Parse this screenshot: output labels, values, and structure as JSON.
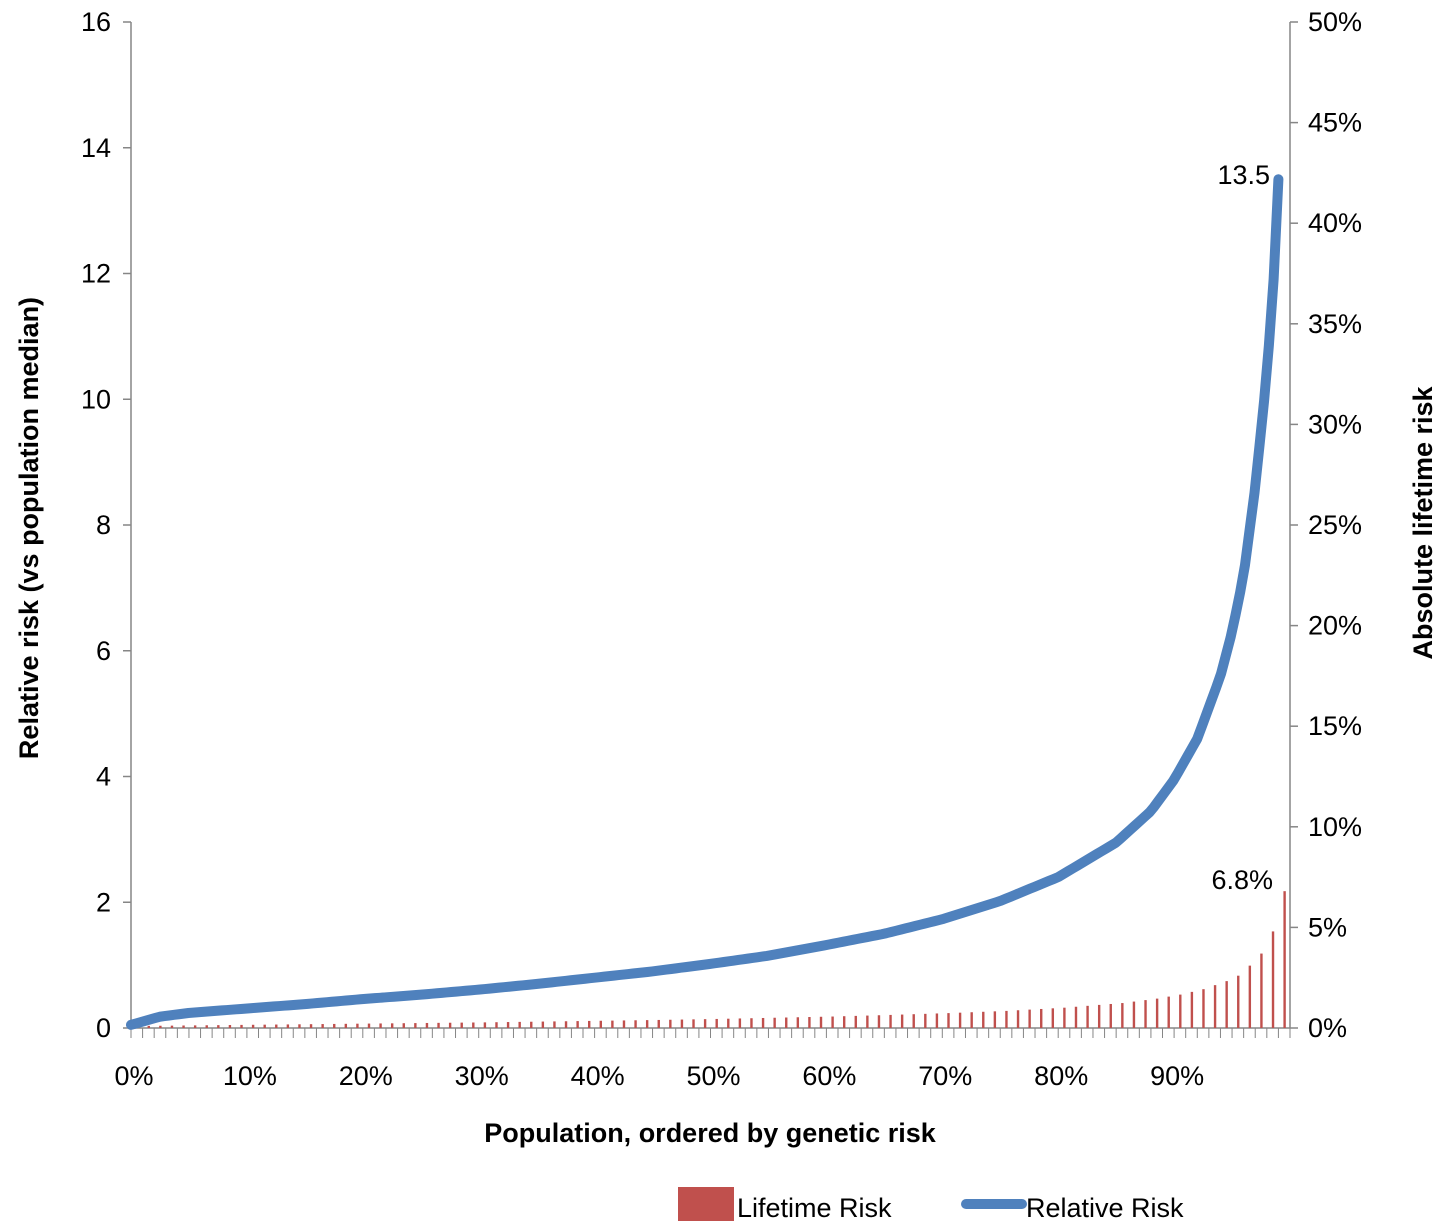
{
  "chart_data": {
    "type": "bar+line",
    "xlabel": "Population, ordered by genetic risk",
    "ylabel_left": "Relative risk (vs population median)",
    "ylabel_right": "Absolute lifetime risk",
    "x_tick_labels": [
      "0%",
      "10%",
      "20%",
      "30%",
      "40%",
      "50%",
      "60%",
      "70%",
      "80%",
      "90%"
    ],
    "y_left_ticks": [
      "0",
      "2",
      "4",
      "6",
      "8",
      "10",
      "12",
      "14",
      "16"
    ],
    "y_right_ticks": [
      "0%",
      "5%",
      "10%",
      "15%",
      "20%",
      "25%",
      "30%",
      "35%",
      "40%",
      "45%",
      "50%"
    ],
    "ylim_left": [
      0,
      16
    ],
    "ylim_right": [
      0,
      0.5
    ],
    "xlim": [
      0,
      100
    ],
    "grid": false,
    "legend_position": "bottom-right",
    "annotations": {
      "line_max": "13.5",
      "bar_max": "6.8%"
    },
    "series": [
      {
        "name": "Lifetime Risk",
        "kind": "bar",
        "axis": "right",
        "color": "#C0504D",
        "x": [
          0,
          5,
          10,
          15,
          20,
          25,
          30,
          35,
          40,
          45,
          50,
          55,
          60,
          65,
          70,
          75,
          80,
          85,
          88,
          90,
          92,
          94,
          95,
          96,
          97,
          98,
          99
        ],
        "values": [
          0.001,
          0.0013,
          0.0016,
          0.0019,
          0.0022,
          0.0025,
          0.0028,
          0.0032,
          0.0036,
          0.004,
          0.0045,
          0.0051,
          0.0057,
          0.0065,
          0.0074,
          0.0085,
          0.0101,
          0.0124,
          0.0146,
          0.0166,
          0.0193,
          0.0233,
          0.026,
          0.031,
          0.037,
          0.048,
          0.068
        ]
      },
      {
        "name": "Relative Risk",
        "kind": "line",
        "axis": "left",
        "color": "#4F81BD",
        "x": [
          0,
          2.5,
          5,
          10,
          15,
          20,
          25,
          30,
          35,
          40,
          45,
          50,
          55,
          60,
          65,
          70,
          75,
          80,
          85,
          88,
          90,
          92,
          94,
          95,
          96,
          97,
          98,
          98.7,
          99
        ],
        "values": [
          0.05,
          0.18,
          0.24,
          0.31,
          0.38,
          0.46,
          0.53,
          0.61,
          0.7,
          0.8,
          0.9,
          1.02,
          1.15,
          1.32,
          1.5,
          1.73,
          2.02,
          2.4,
          2.95,
          3.45,
          3.95,
          4.6,
          5.6,
          6.3,
          7.2,
          8.6,
          10.4,
          12.2,
          13.5
        ]
      }
    ]
  }
}
